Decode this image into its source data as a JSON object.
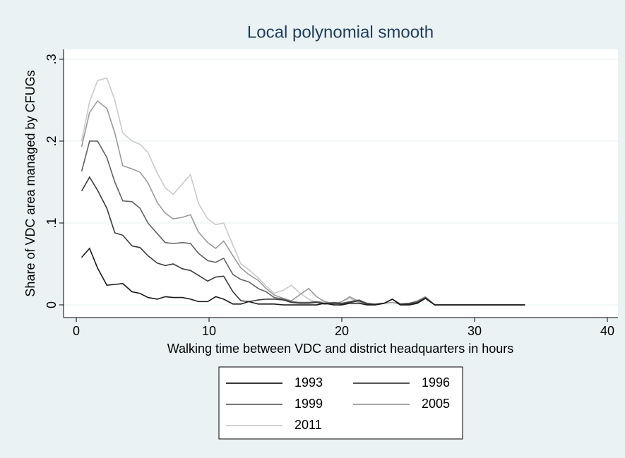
{
  "chart_data": {
    "type": "line",
    "title": "Local polynomial smooth",
    "x_label": "Walking time between VDC and district headquarters in hours",
    "y_label": "Share of VDC area managed by CFUGs",
    "x": [
      0.4,
      1.0,
      1.6,
      2.3,
      2.9,
      3.5,
      4.2,
      4.8,
      5.4,
      6.1,
      6.7,
      7.3,
      8.0,
      8.6,
      9.2,
      9.9,
      10.5,
      11.1,
      11.8,
      12.4,
      13.0,
      13.7,
      14.3,
      14.9,
      15.6,
      16.2,
      16.8,
      17.5,
      18.1,
      18.7,
      19.4,
      20.0,
      20.6,
      21.3,
      21.9,
      22.5,
      23.2,
      23.8,
      24.4,
      25.1,
      25.7,
      26.3,
      27.0,
      33.8
    ],
    "series": [
      {
        "name": "1993",
        "color": "#1a1a1a",
        "values": [
          0.058,
          0.069,
          0.045,
          0.024,
          0.025,
          0.026,
          0.016,
          0.014,
          0.009,
          0.007,
          0.01,
          0.009,
          0.009,
          0.007,
          0.004,
          0.004,
          0.01,
          0.007,
          0.001,
          0.001,
          0.004,
          0.001,
          0.001,
          0.001,
          0,
          0,
          0,
          0,
          0,
          0.002,
          0,
          0,
          0.002,
          0.002,
          0,
          0,
          0.002,
          0.007,
          0,
          0,
          0.002,
          0.008,
          0,
          0
        ]
      },
      {
        "name": "1996",
        "color": "#3c3c3c",
        "values": [
          0.139,
          0.156,
          0.14,
          0.118,
          0.088,
          0.085,
          0.072,
          0.07,
          0.06,
          0.051,
          0.048,
          0.05,
          0.044,
          0.042,
          0.036,
          0.029,
          0.034,
          0.035,
          0.016,
          0.005,
          0.004,
          0.006,
          0.007,
          0.007,
          0.006,
          0.003,
          0.002,
          0.002,
          0.003,
          0.001,
          0.002,
          0.001,
          0.003,
          0.005,
          0.001,
          0,
          0.002,
          0.007,
          0.001,
          0.001,
          0.003,
          0.008,
          0,
          0
        ]
      },
      {
        "name": "1999",
        "color": "#626262",
        "values": [
          0.163,
          0.2,
          0.2,
          0.18,
          0.15,
          0.127,
          0.126,
          0.118,
          0.1,
          0.087,
          0.076,
          0.075,
          0.076,
          0.075,
          0.063,
          0.054,
          0.052,
          0.057,
          0.037,
          0.031,
          0.028,
          0.02,
          0.016,
          0.009,
          0.007,
          0.004,
          0.003,
          0.003,
          0.004,
          0.002,
          0.003,
          0.002,
          0.004,
          0.006,
          0.002,
          0.001,
          0.002,
          0.007,
          0.001,
          0.002,
          0.004,
          0.009,
          0,
          0
        ]
      },
      {
        "name": "2005",
        "color": "#9a9a9a",
        "values": [
          0.193,
          0.235,
          0.249,
          0.24,
          0.21,
          0.17,
          0.166,
          0.162,
          0.149,
          0.125,
          0.112,
          0.105,
          0.107,
          0.11,
          0.089,
          0.076,
          0.069,
          0.078,
          0.06,
          0.045,
          0.037,
          0.03,
          0.02,
          0.012,
          0.008,
          0.005,
          0.012,
          0.02,
          0.01,
          0.004,
          0.001,
          0.004,
          0.01,
          0.004,
          0.002,
          0.001,
          0.002,
          0.003,
          0.001,
          0.002,
          0.005,
          0.01,
          0,
          0
        ]
      },
      {
        "name": "2011",
        "color": "#cacaca",
        "values": [
          0.2,
          0.248,
          0.274,
          0.277,
          0.25,
          0.21,
          0.2,
          0.196,
          0.186,
          0.161,
          0.143,
          0.135,
          0.148,
          0.159,
          0.124,
          0.105,
          0.098,
          0.1,
          0.073,
          0.05,
          0.043,
          0.033,
          0.023,
          0.014,
          0.018,
          0.024,
          0.015,
          0.007,
          0.003,
          0.005,
          0.001,
          0.004,
          0.008,
          0.003,
          0.002,
          0.001,
          0.002,
          0.003,
          0.001,
          0.002,
          0.004,
          0.008,
          0,
          0
        ]
      }
    ],
    "xlim": [
      -0.96,
      40.8
    ],
    "ylim": [
      -0.0155,
      0.312
    ],
    "xticks": [
      0,
      10,
      20,
      30,
      40
    ],
    "yticks": [
      0,
      {
        "value": 0.1,
        "label": ".1"
      },
      {
        "value": 0.2,
        "label": ".2"
      },
      {
        "value": 0.3,
        "label": ".3"
      }
    ],
    "grid": true,
    "legend_position": "bottom"
  }
}
